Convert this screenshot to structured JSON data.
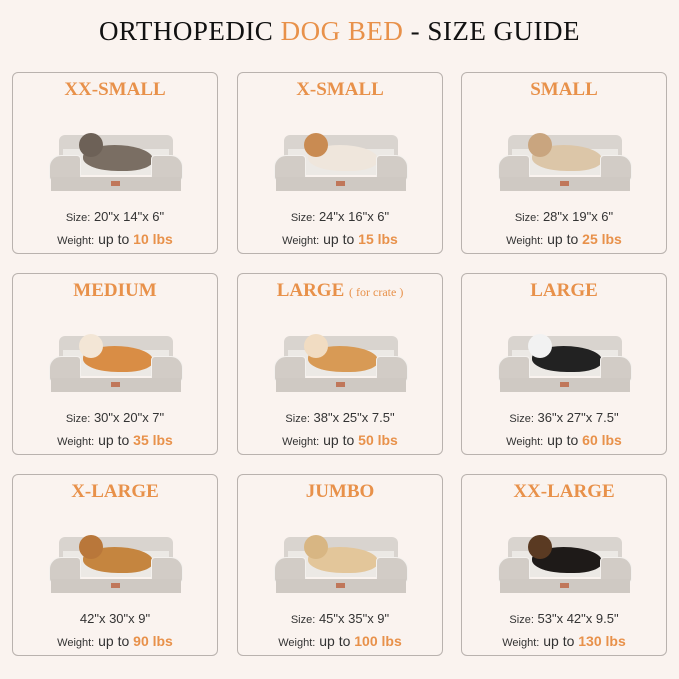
{
  "title": {
    "part1": "ORTHOPEDIC ",
    "accent": "DOG BED",
    "part2": " - SIZE GUIDE"
  },
  "colors": {
    "accent": "#e8914a",
    "background": "#faf3ef",
    "border": "#b9b2ae"
  },
  "size_label": "Size:",
  "weight_label": "Weight:",
  "up_to": "up to",
  "cards": [
    {
      "name": "XX-SMALL",
      "note": "",
      "size": "20\"x 14\"x 6\"",
      "show_size_label": true,
      "weight": "10 lbs",
      "pet": "cat"
    },
    {
      "name": "X-SMALL",
      "note": "",
      "size": "24\"x 16\"x 6\"",
      "show_size_label": true,
      "weight": "15 lbs",
      "pet": "shih-tzu"
    },
    {
      "name": "SMALL",
      "note": "",
      "size": "28\"x 19\"x 6\"",
      "show_size_label": true,
      "weight": "25 lbs",
      "pet": "french-bulldog"
    },
    {
      "name": "MEDIUM",
      "note": "",
      "size": "30\"x 20\"x 7\"",
      "show_size_label": true,
      "weight": "35 lbs",
      "pet": "corgi"
    },
    {
      "name": "LARGE",
      "note": "( for crate )",
      "size": "38\"x 25\"x 7.5\"",
      "show_size_label": true,
      "weight": "50 lbs",
      "pet": "shiba-inu"
    },
    {
      "name": "LARGE",
      "note": "",
      "size": "36\"x 27\"x 7.5\"",
      "show_size_label": true,
      "weight": "60 lbs",
      "pet": "border-collie"
    },
    {
      "name": "X-LARGE",
      "note": "",
      "size": "42\"x 30\"x 9\"",
      "show_size_label": false,
      "weight": "90 lbs",
      "pet": "golden-retriever"
    },
    {
      "name": "JUMBO",
      "note": "",
      "size": "45\"x 35\"x 9\"",
      "show_size_label": true,
      "weight": "100 lbs",
      "pet": "labrador"
    },
    {
      "name": "XX-LARGE",
      "note": "",
      "size": "53\"x 42\"x 9.5\"",
      "show_size_label": true,
      "weight": "130 lbs",
      "pet": "rottweiler"
    }
  ]
}
